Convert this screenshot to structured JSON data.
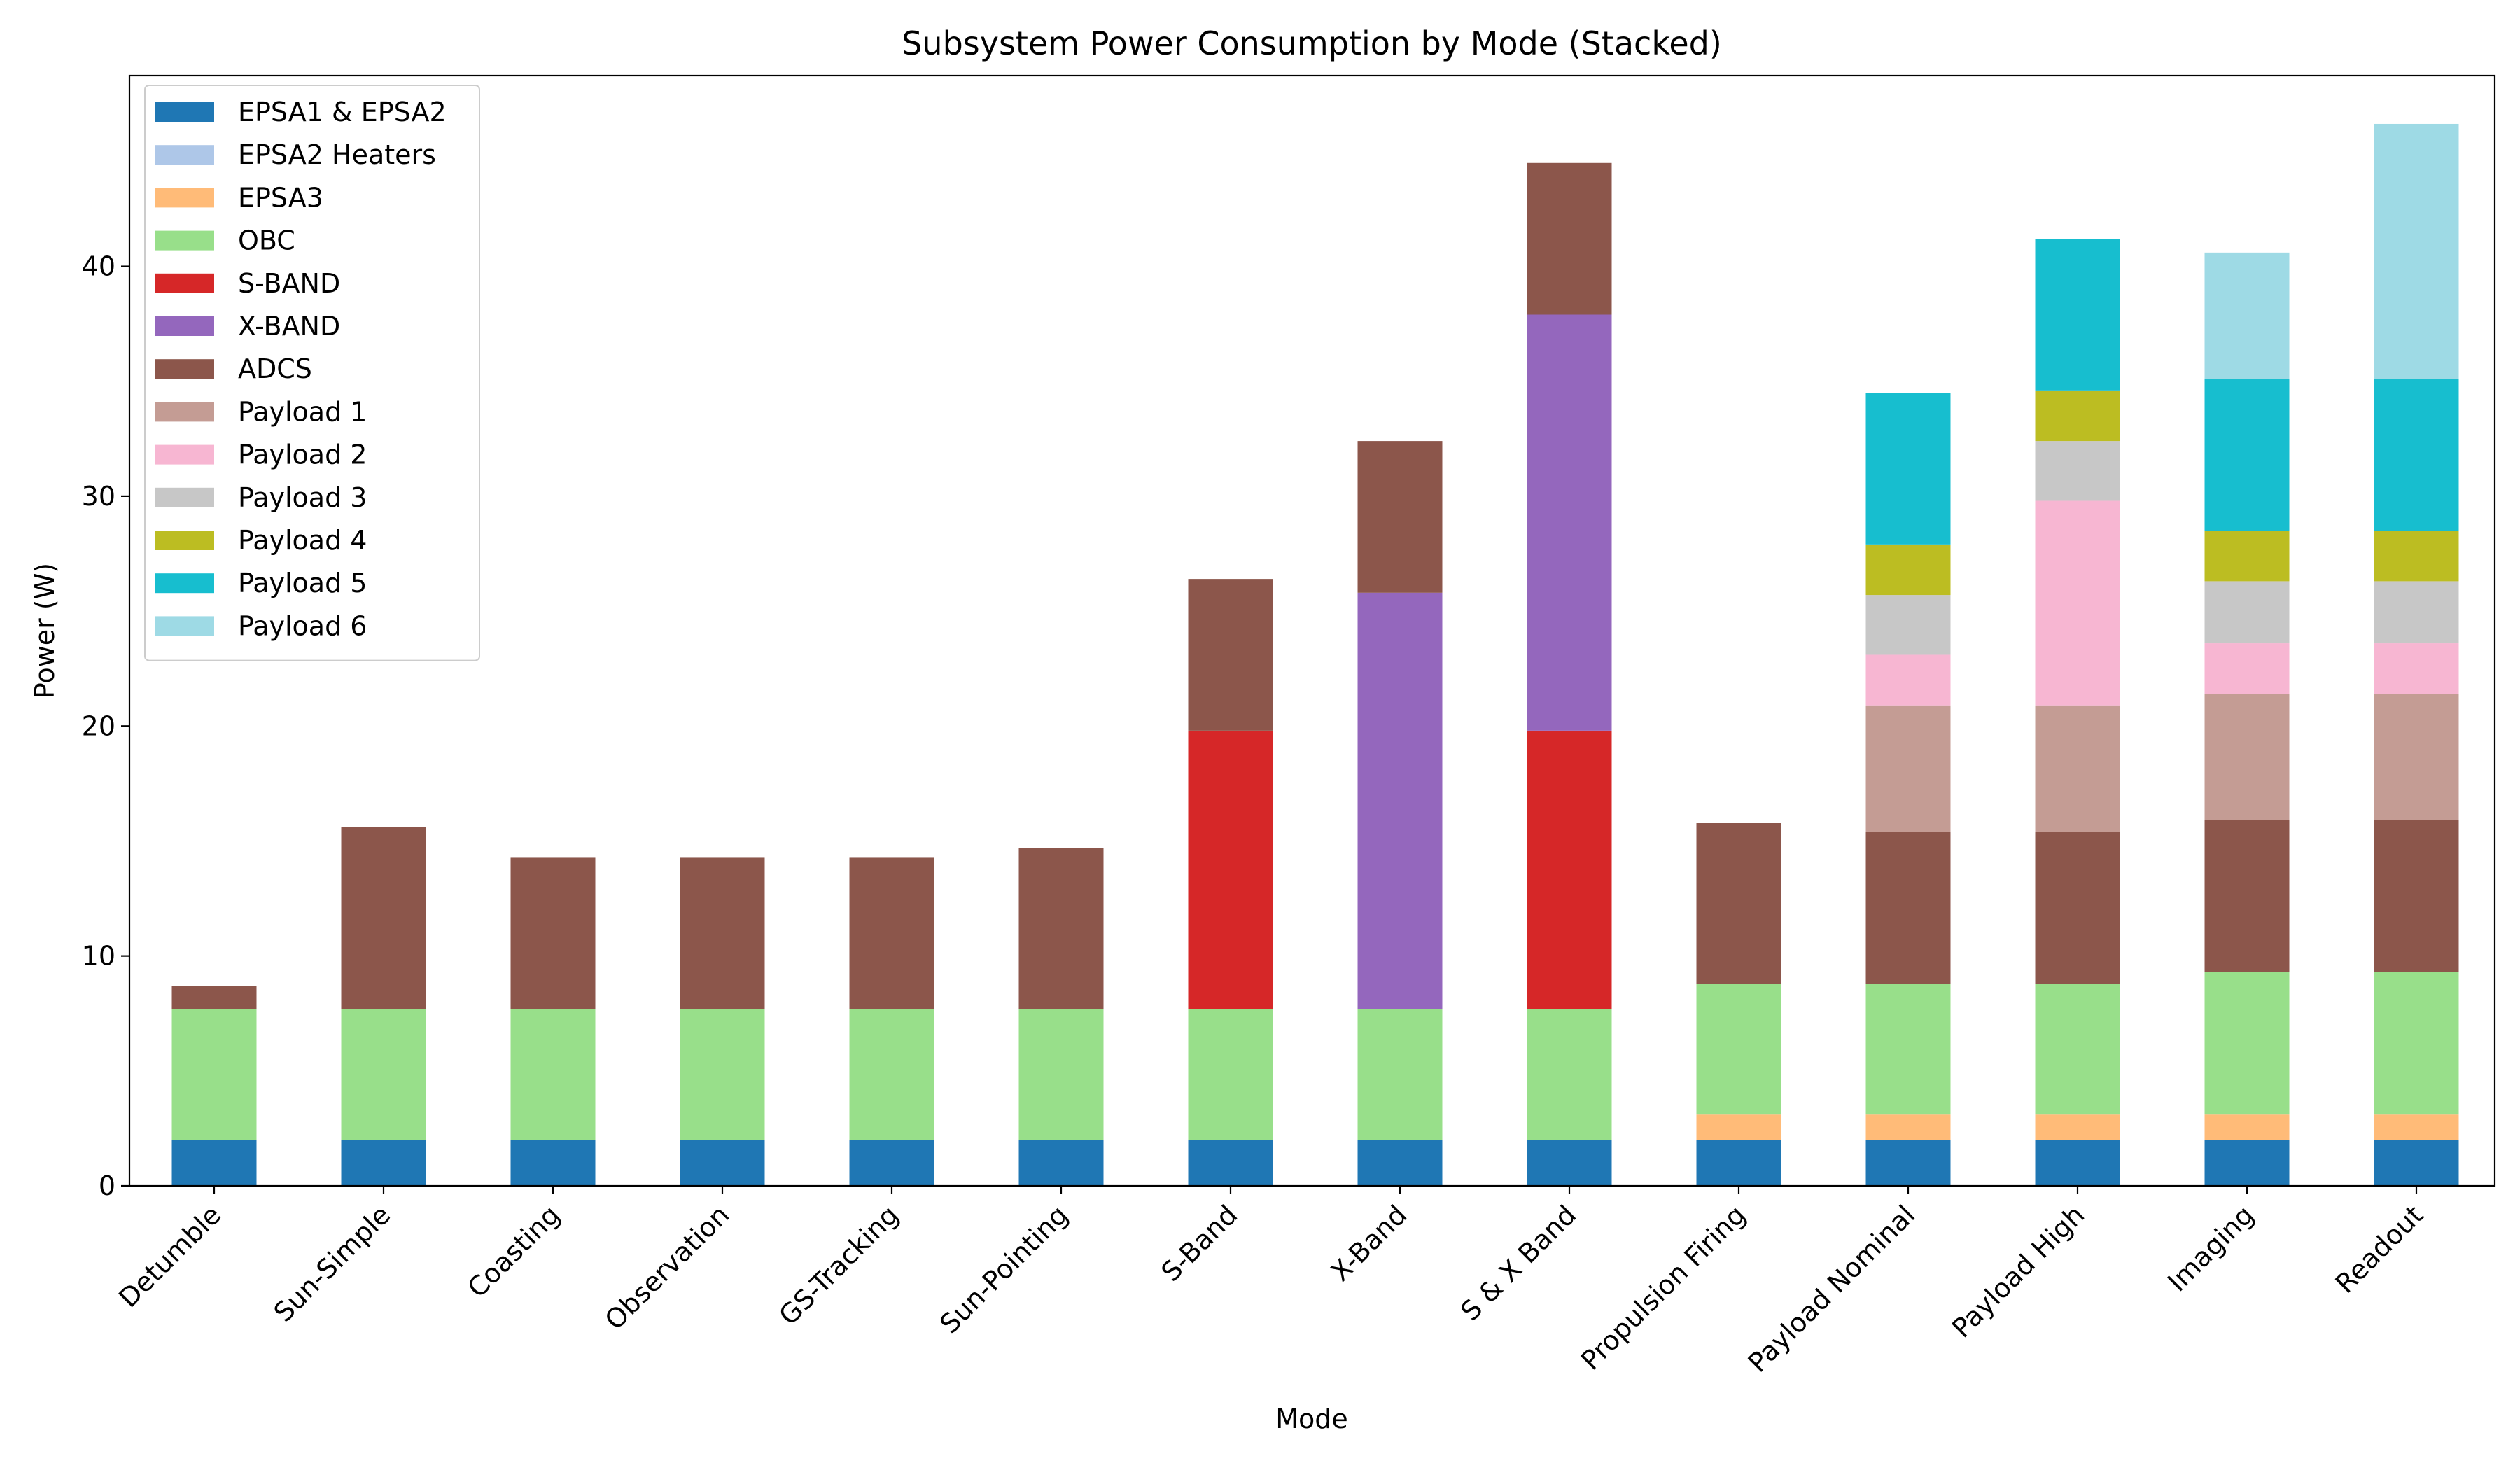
{
  "chart_data": {
    "type": "bar",
    "stacked": true,
    "title": "Subsystem Power Consumption by Mode (Stacked)",
    "xlabel": "Mode",
    "ylabel": "Power (W)",
    "ylim": [
      0,
      48.3
    ],
    "yticks": [
      0,
      10,
      20,
      30,
      40
    ],
    "grid": false,
    "legend_position": "top-left",
    "categories": [
      "Detumble",
      "Sun-Simple",
      "Coasting",
      "Observation",
      "GS-Tracking",
      "Sun-Pointing",
      "S-Band",
      "X-Band",
      "S & X Band",
      "Propulsion Firing",
      "Payload Nominal",
      "Payload High",
      "Imaging",
      "Readout"
    ],
    "series": [
      {
        "name": "EPSA1 & EPSA2",
        "color": "#1f77b4",
        "values": [
          2.0,
          2.0,
          2.0,
          2.0,
          2.0,
          2.0,
          2.0,
          2.0,
          2.0,
          2.0,
          2.0,
          2.0,
          2.0,
          2.0
        ]
      },
      {
        "name": "EPSA2 Heaters",
        "color": "#aec7e8",
        "values": [
          0,
          0,
          0,
          0,
          0,
          0,
          0,
          0,
          0,
          0,
          0,
          0,
          0,
          0
        ]
      },
      {
        "name": "EPSA3",
        "color": "#ffbb78",
        "values": [
          0,
          0,
          0,
          0,
          0,
          0,
          0,
          0,
          0,
          1.1,
          1.1,
          1.1,
          1.1,
          1.1
        ]
      },
      {
        "name": "OBC",
        "color": "#98df8a",
        "values": [
          5.7,
          5.7,
          5.7,
          5.7,
          5.7,
          5.7,
          5.7,
          5.7,
          5.7,
          5.7,
          5.7,
          5.7,
          6.2,
          6.2
        ]
      },
      {
        "name": "S-BAND",
        "color": "#d62728",
        "values": [
          0,
          0,
          0,
          0,
          0,
          0,
          12.1,
          0,
          12.1,
          0,
          0,
          0,
          0,
          0
        ]
      },
      {
        "name": "X-BAND",
        "color": "#9467bd",
        "values": [
          0,
          0,
          0,
          0,
          0,
          0,
          0,
          18.1,
          18.1,
          0,
          0,
          0,
          0,
          0
        ]
      },
      {
        "name": "ADCS",
        "color": "#8c564b",
        "values": [
          1.0,
          7.9,
          6.6,
          6.6,
          6.6,
          7.0,
          6.6,
          6.6,
          6.6,
          7.0,
          6.6,
          6.6,
          6.6,
          6.6
        ]
      },
      {
        "name": "Payload 1",
        "color": "#c49c94",
        "values": [
          0,
          0,
          0,
          0,
          0,
          0,
          0,
          0,
          0,
          0,
          5.5,
          5.5,
          5.5,
          5.5
        ]
      },
      {
        "name": "Payload 2",
        "color": "#f7b6d2",
        "values": [
          0,
          0,
          0,
          0,
          0,
          0,
          0,
          0,
          0,
          0,
          2.2,
          8.9,
          2.2,
          2.2
        ]
      },
      {
        "name": "Payload 3",
        "color": "#c7c7c7",
        "values": [
          0,
          0,
          0,
          0,
          0,
          0,
          0,
          0,
          0,
          0,
          2.6,
          2.6,
          2.7,
          2.7
        ]
      },
      {
        "name": "Payload 4",
        "color": "#bcbd22",
        "values": [
          0,
          0,
          0,
          0,
          0,
          0,
          0,
          0,
          0,
          0,
          2.2,
          2.2,
          2.2,
          2.2
        ]
      },
      {
        "name": "Payload 5",
        "color": "#17becf",
        "values": [
          0,
          0,
          0,
          0,
          0,
          0,
          0,
          0,
          0,
          0,
          6.6,
          6.6,
          6.6,
          6.6
        ]
      },
      {
        "name": "Payload 6",
        "color": "#9edae5",
        "values": [
          0,
          0,
          0,
          0,
          0,
          0,
          0,
          0,
          0,
          0,
          0,
          0,
          5.5,
          11.1
        ]
      }
    ]
  }
}
